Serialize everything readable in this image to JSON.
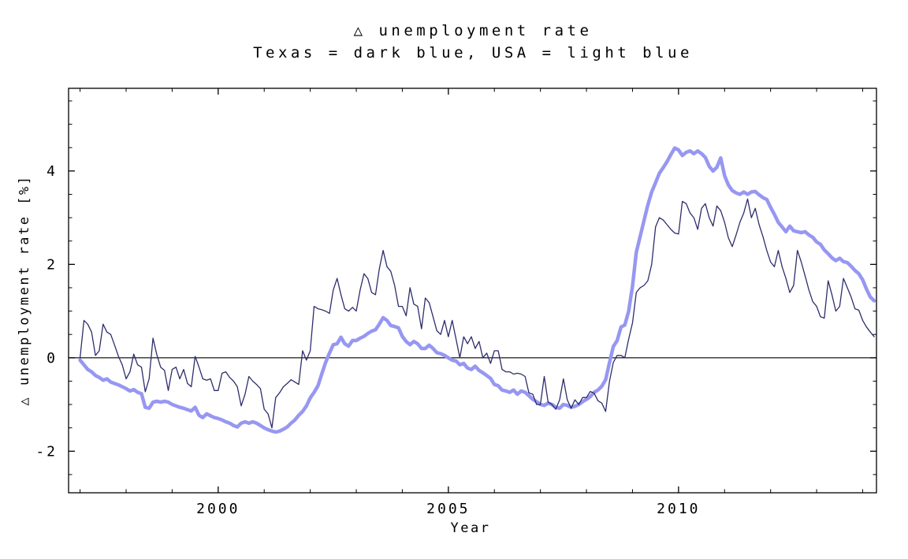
{
  "chart_data": {
    "type": "line",
    "title": "△ unemployment rate",
    "subtitle": "Texas = dark blue, USA = light blue",
    "xlabel": "Year",
    "ylabel": "△ unemployment rate [%]",
    "grid": false,
    "legend": "encoded in subtitle: Texas = dark blue (thin), USA = light blue (thick)",
    "x_axis": {
      "label": "Year",
      "range": [
        1996.75,
        2014.3
      ],
      "major_ticks": [
        {
          "v": 2000,
          "label": "2000"
        },
        {
          "v": 2005,
          "label": "2005"
        },
        {
          "v": 2010,
          "label": "2010"
        }
      ],
      "minor_tick_start": 1997,
      "minor_tick_end": 2014,
      "minor_tick_step": 1
    },
    "y_axis": {
      "label": "△ unemployment rate [%]",
      "range": [
        -2.89,
        5.77
      ],
      "major_ticks": [
        {
          "v": 4,
          "label": "4"
        },
        {
          "v": 2,
          "label": "2"
        },
        {
          "v": 0,
          "label": "0"
        },
        {
          "v": -2,
          "label": "-2"
        }
      ],
      "minor_tick_start": -2.5,
      "minor_tick_end": 5.5,
      "minor_tick_step": 0.5,
      "zero_line": 0
    },
    "x_start": 1997.0,
    "x_step": 0.0833333,
    "series": [
      {
        "name": "USA",
        "color_label": "light blue",
        "color": "#9797f2",
        "values": [
          -0.05,
          -0.15,
          -0.25,
          -0.3,
          -0.38,
          -0.42,
          -0.48,
          -0.45,
          -0.52,
          -0.55,
          -0.58,
          -0.62,
          -0.66,
          -0.71,
          -0.68,
          -0.74,
          -0.77,
          -1.06,
          -1.08,
          -0.95,
          -0.93,
          -0.95,
          -0.93,
          -0.95,
          -1.0,
          -1.03,
          -1.06,
          -1.08,
          -1.11,
          -1.14,
          -1.06,
          -1.23,
          -1.28,
          -1.2,
          -1.24,
          -1.28,
          -1.3,
          -1.33,
          -1.37,
          -1.4,
          -1.45,
          -1.48,
          -1.4,
          -1.37,
          -1.4,
          -1.37,
          -1.4,
          -1.45,
          -1.5,
          -1.54,
          -1.57,
          -1.59,
          -1.57,
          -1.53,
          -1.48,
          -1.4,
          -1.33,
          -1.23,
          -1.15,
          -1.03,
          -0.86,
          -0.74,
          -0.6,
          -0.35,
          -0.1,
          0.1,
          0.28,
          0.3,
          0.44,
          0.3,
          0.25,
          0.37,
          0.37,
          0.42,
          0.46,
          0.52,
          0.57,
          0.6,
          0.72,
          0.86,
          0.8,
          0.69,
          0.67,
          0.64,
          0.46,
          0.35,
          0.28,
          0.35,
          0.3,
          0.2,
          0.2,
          0.27,
          0.2,
          0.11,
          0.09,
          0.05,
          0.0,
          -0.05,
          -0.07,
          -0.15,
          -0.12,
          -0.22,
          -0.25,
          -0.18,
          -0.27,
          -0.32,
          -0.38,
          -0.44,
          -0.57,
          -0.6,
          -0.69,
          -0.71,
          -0.74,
          -0.69,
          -0.78,
          -0.71,
          -0.74,
          -0.81,
          -0.89,
          -0.94,
          -1.0,
          -1.02,
          -0.97,
          -1.0,
          -1.06,
          -1.08,
          -1.0,
          -1.02,
          -1.06,
          -1.04,
          -1.0,
          -0.94,
          -0.89,
          -0.83,
          -0.74,
          -0.69,
          -0.61,
          -0.47,
          -0.1,
          0.24,
          0.37,
          0.66,
          0.7,
          1.0,
          1.54,
          2.26,
          2.6,
          2.94,
          3.27,
          3.55,
          3.75,
          3.95,
          4.07,
          4.2,
          4.35,
          4.49,
          4.45,
          4.33,
          4.4,
          4.43,
          4.37,
          4.43,
          4.37,
          4.29,
          4.1,
          4.0,
          4.08,
          4.28,
          3.9,
          3.7,
          3.58,
          3.53,
          3.5,
          3.55,
          3.5,
          3.55,
          3.56,
          3.49,
          3.43,
          3.39,
          3.22,
          3.07,
          2.9,
          2.8,
          2.7,
          2.82,
          2.72,
          2.7,
          2.68,
          2.7,
          2.63,
          2.58,
          2.48,
          2.43,
          2.31,
          2.23,
          2.14,
          2.08,
          2.13,
          2.06,
          2.04,
          1.96,
          1.87,
          1.8,
          1.67,
          1.47,
          1.3,
          1.22
        ]
      },
      {
        "name": "Texas",
        "color_label": "dark blue",
        "color": "#2d2d6d",
        "values": [
          0.0,
          0.8,
          0.72,
          0.55,
          0.05,
          0.15,
          0.72,
          0.55,
          0.5,
          0.27,
          0.03,
          -0.15,
          -0.45,
          -0.3,
          0.08,
          -0.15,
          -0.2,
          -0.73,
          -0.45,
          0.42,
          0.07,
          -0.2,
          -0.27,
          -0.7,
          -0.25,
          -0.2,
          -0.45,
          -0.25,
          -0.55,
          -0.62,
          0.03,
          -0.2,
          -0.45,
          -0.48,
          -0.45,
          -0.7,
          -0.7,
          -0.33,
          -0.3,
          -0.42,
          -0.5,
          -0.62,
          -1.03,
          -0.78,
          -0.4,
          -0.5,
          -0.57,
          -0.66,
          -1.1,
          -1.2,
          -1.5,
          -0.85,
          -0.75,
          -0.62,
          -0.55,
          -0.47,
          -0.52,
          -0.57,
          0.15,
          -0.05,
          0.15,
          1.1,
          1.05,
          1.03,
          1.0,
          0.95,
          1.45,
          1.7,
          1.35,
          1.05,
          1.0,
          1.08,
          1.0,
          1.45,
          1.8,
          1.7,
          1.4,
          1.35,
          1.9,
          2.3,
          1.95,
          1.85,
          1.55,
          1.1,
          1.1,
          0.9,
          1.5,
          1.15,
          1.1,
          0.62,
          1.28,
          1.18,
          0.88,
          0.58,
          0.5,
          0.8,
          0.45,
          0.8,
          0.4,
          0.0,
          0.45,
          0.3,
          0.45,
          0.2,
          0.35,
          0.0,
          0.1,
          -0.12,
          0.15,
          0.15,
          -0.25,
          -0.3,
          -0.3,
          -0.35,
          -0.33,
          -0.35,
          -0.4,
          -0.75,
          -0.78,
          -1.0,
          -1.0,
          -0.4,
          -0.95,
          -1.0,
          -1.1,
          -0.9,
          -0.45,
          -0.9,
          -1.08,
          -0.9,
          -1.0,
          -0.85,
          -0.85,
          -0.72,
          -0.76,
          -0.92,
          -0.97,
          -1.15,
          -0.5,
          -0.1,
          0.05,
          0.05,
          0.0,
          0.4,
          0.75,
          1.4,
          1.5,
          1.55,
          1.65,
          2.0,
          2.8,
          3.0,
          2.95,
          2.85,
          2.75,
          2.67,
          2.65,
          3.35,
          3.3,
          3.1,
          3.0,
          2.75,
          3.2,
          3.3,
          3.0,
          2.82,
          3.25,
          3.15,
          2.9,
          2.57,
          2.38,
          2.63,
          2.9,
          3.1,
          3.4,
          3.0,
          3.2,
          2.85,
          2.6,
          2.3,
          2.05,
          1.95,
          2.3,
          1.95,
          1.7,
          1.4,
          1.55,
          2.3,
          2.05,
          1.75,
          1.45,
          1.2,
          1.1,
          0.88,
          0.85,
          1.65,
          1.35,
          1.0,
          1.1,
          1.7,
          1.5,
          1.3,
          1.05,
          1.02,
          0.8,
          0.66,
          0.55,
          0.45
        ]
      }
    ]
  }
}
